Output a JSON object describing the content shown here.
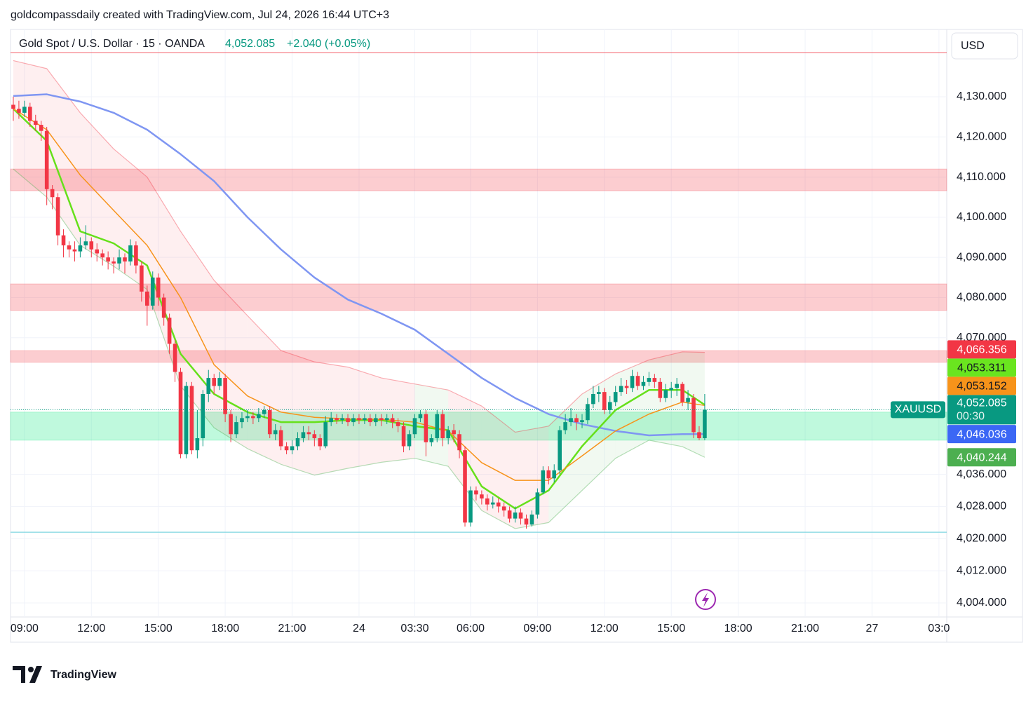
{
  "header": {
    "caption": "goldcompassdaily created with TradingView.com, Jul 24, 2026 16:44 UTC+3",
    "brand": "TradingView"
  },
  "chart_data": {
    "type": "candlestick",
    "title": "Gold Spot / U.S. Dollar · 15 · OANDA",
    "change": "+2.040 (+0.05%)",
    "currency": "USD",
    "up_color": "#089981",
    "down_color": "#f23645",
    "xlim": [
      -0.5,
      167.4
    ],
    "xticks": [
      {
        "value": 2,
        "label": "09:00"
      },
      {
        "value": 14,
        "label": "12:00"
      },
      {
        "value": 26,
        "label": "15:00"
      },
      {
        "value": 38,
        "label": "18:00"
      },
      {
        "value": 50,
        "label": "21:00"
      },
      {
        "value": 62,
        "label": "24"
      },
      {
        "value": 72,
        "label": "03:30"
      },
      {
        "value": 82,
        "label": "06:00"
      },
      {
        "value": 94,
        "label": "09:00"
      },
      {
        "value": 106,
        "label": "12:00"
      },
      {
        "value": 118,
        "label": "15:00"
      },
      {
        "value": 130,
        "label": "18:00"
      },
      {
        "value": 142,
        "label": "21:00"
      },
      {
        "value": 154,
        "label": "27"
      },
      {
        "value": 166,
        "label": "03:0"
      }
    ],
    "ylim": [
      4000.5,
      4146.75
    ],
    "yticks": [
      {
        "value": 4130,
        "label": "4,130.000"
      },
      {
        "value": 4120,
        "label": "4,120.000"
      },
      {
        "value": 4110,
        "label": "4,110.000"
      },
      {
        "value": 4100,
        "label": "4,100.000"
      },
      {
        "value": 4090,
        "label": "4,090.000"
      },
      {
        "value": 4080,
        "label": "4,080.000"
      },
      {
        "value": 4070,
        "label": "4,070.000"
      },
      {
        "value": 4036,
        "label": "4,036.000"
      },
      {
        "value": 4028,
        "label": "4,028.000"
      },
      {
        "value": 4020,
        "label": "4,020.000"
      },
      {
        "value": 4012,
        "label": "4,012.000"
      },
      {
        "value": 4004,
        "label": "4,004.000"
      }
    ],
    "grid": true,
    "open": [
      4128,
      4127,
      4126,
      4127.5,
      4124,
      4123,
      4121.5,
      4107,
      4105,
      4095.5,
      4093,
      4092,
      4091.5,
      4093,
      4094,
      4092,
      4091,
      4090,
      4089,
      4088.5,
      4090,
      4089,
      4093,
      4088,
      4081.5,
      4078,
      4085,
      4080,
      4075,
      4068.5,
      4061.5,
      4041,
      4058,
      4042,
      4045,
      4056,
      4060,
      4058,
      4060,
      4051,
      4046,
      4049,
      4050,
      4050.5,
      4050,
      4051,
      4052,
      4046,
      4047,
      4043,
      4042,
      4043,
      4045,
      4046.5,
      4046,
      4045,
      4043,
      4049,
      4050,
      4049.5,
      4050,
      4049,
      4050,
      4049.5,
      4050,
      4049,
      4050,
      4049.5,
      4050,
      4049,
      4048,
      4043,
      4046,
      4050,
      4051,
      4044,
      4045,
      4051,
      4045,
      4047,
      4046,
      4042,
      4024,
      4032,
      4031,
      4030,
      4028.5,
      4029,
      4028,
      4027,
      4025,
      4026.5,
      4025,
      4023.5,
      4026,
      4031.5,
      4037,
      4035,
      4037,
      4047,
      4049,
      4050,
      4049,
      4049.5,
      4053.5,
      4056,
      4056.5,
      4052,
      4054,
      4056.5,
      4058,
      4057.5,
      4060.5,
      4058,
      4059,
      4060,
      4059,
      4055,
      4057,
      4057.5,
      4058.5,
      4054,
      4055,
      4046.5,
      4045
    ],
    "high": [
      4130,
      4129,
      4129,
      4128.5,
      4125.5,
      4124,
      4122.5,
      4108,
      4106,
      4097,
      4094,
      4094,
      4095,
      4098,
      4095,
      4093.5,
      4092,
      4091.5,
      4090,
      4092,
      4091,
      4094.5,
      4094,
      4089,
      4083,
      4086.5,
      4086,
      4081,
      4076,
      4069.5,
      4062.5,
      4059,
      4059,
      4052,
      4057,
      4062,
      4061,
      4061.5,
      4061,
      4052,
      4050.5,
      4051.5,
      4052,
      4051.5,
      4052.5,
      4053,
      4053,
      4048.5,
      4048,
      4044,
      4044.5,
      4046.5,
      4048,
      4048,
      4047,
      4046,
      4050.5,
      4051.5,
      4051,
      4051,
      4051,
      4051,
      4051,
      4051,
      4051,
      4051,
      4051,
      4051,
      4051,
      4050,
      4049,
      4047,
      4051,
      4052,
      4052,
      4046,
      4052,
      4052,
      4048,
      4048.5,
      4047,
      4043,
      4033,
      4033,
      4032,
      4031,
      4030.5,
      4030,
      4029,
      4028,
      4028,
      4027.5,
      4026,
      4027,
      4032.5,
      4038,
      4038,
      4038.5,
      4048,
      4051,
      4052.5,
      4051,
      4051,
      4055,
      4058,
      4058,
      4057.5,
      4055.5,
      4058,
      4060,
      4059.5,
      4062,
      4061.5,
      4060.5,
      4061.5,
      4061,
      4060,
      4058.5,
      4059,
      4060,
      4059,
      4057,
      4056,
      4048,
      4056
    ],
    "low": [
      4124,
      4124.5,
      4125,
      4122.5,
      4121.5,
      4119,
      4103,
      4102,
      4093,
      4090,
      4090,
      4089,
      4090,
      4092,
      4090,
      4089,
      4088,
      4087,
      4086,
      4087,
      4086,
      4088,
      4086,
      4079,
      4073,
      4077,
      4078,
      4073,
      4066,
      4059,
      4040,
      4040,
      4041,
      4040,
      4043,
      4054,
      4056,
      4057,
      4049,
      4044,
      4045,
      4047.5,
      4049,
      4048.5,
      4049,
      4050,
      4045,
      4044.5,
      4042,
      4041,
      4041,
      4042,
      4044,
      4044.5,
      4043,
      4042,
      4042.5,
      4048,
      4048.5,
      4048.5,
      4048,
      4048,
      4048.5,
      4048.5,
      4048,
      4048,
      4048,
      4048.5,
      4047.5,
      4046.5,
      4041.5,
      4042,
      4045,
      4049,
      4040.5,
      4043,
      4044,
      4043,
      4043.5,
      4044,
      4040,
      4023,
      4023,
      4029.5,
      4028.5,
      4027,
      4027.5,
      4026.5,
      4025.5,
      4024,
      4024,
      4023.5,
      4022.5,
      4023,
      4025,
      4031,
      4033.5,
      4034,
      4036,
      4046,
      4048,
      4047,
      4047.5,
      4048.5,
      4052.5,
      4054,
      4051,
      4051,
      4053,
      4055.5,
      4056,
      4056.5,
      4057,
      4057,
      4058,
      4057.5,
      4054,
      4054,
      4055,
      4055.5,
      4053,
      4052,
      4045,
      4044.5,
      4044.5
    ],
    "close": [
      4127,
      4126,
      4127.5,
      4124,
      4123,
      4121.5,
      4107,
      4105,
      4095.5,
      4093,
      4092,
      4091.5,
      4093,
      4094,
      4092,
      4091,
      4090,
      4089,
      4088.5,
      4090,
      4089,
      4093,
      4088,
      4081.5,
      4078,
      4085,
      4080,
      4075,
      4068.5,
      4061.5,
      4041,
      4058,
      4042,
      4045,
      4056,
      4060,
      4058,
      4060,
      4051,
      4046,
      4049,
      4050,
      4050.5,
      4050,
      4051,
      4052,
      4046,
      4047,
      4043,
      4042,
      4043,
      4045,
      4046.5,
      4046,
      4045,
      4043,
      4049,
      4050,
      4049.5,
      4050,
      4049,
      4050,
      4049.5,
      4050,
      4049,
      4050,
      4049.5,
      4050,
      4049,
      4048,
      4043,
      4046,
      4050,
      4051,
      4044,
      4045,
      4051,
      4045,
      4047,
      4046,
      4042,
      4024,
      4032,
      4031,
      4030,
      4028.5,
      4029,
      4028,
      4027,
      4025,
      4026.5,
      4025,
      4023.5,
      4026,
      4031.5,
      4037,
      4035,
      4037,
      4047,
      4049,
      4050,
      4049,
      4049.5,
      4053.5,
      4056,
      4056.5,
      4052,
      4054,
      4056.5,
      4058,
      4057.5,
      4060.5,
      4058,
      4059,
      4060,
      4059,
      4055,
      4057,
      4057.5,
      4058.5,
      4054,
      4055,
      4046.5,
      4045,
      4052.085
    ],
    "indicator_x": [
      0,
      6,
      12,
      18,
      24,
      30,
      36,
      42,
      48,
      54,
      60,
      66,
      72,
      78,
      84,
      90,
      96,
      102,
      108,
      114,
      120,
      124
    ],
    "lines": [
      {
        "color": "#7f96f2",
        "width": 2.5,
        "values": [
          4130.2,
          4130.6,
          4128.8,
          4126,
          4121.8,
          4115.7,
          4109,
          4100,
          4092,
          4085,
          4079.5,
          4076,
          4072,
          4066,
          4060,
          4055,
          4051,
          4048.5,
          4046.8,
          4045.7,
          4046,
          4046.036
        ]
      },
      {
        "color": "#66e01a",
        "width": 2.5,
        "values": [
          4127,
          4119,
          4096.5,
          4093.5,
          4088,
          4066,
          4056,
          4051.5,
          4049,
          4049,
          4049.5,
          4049.5,
          4048,
          4047,
          4033,
          4027.5,
          4032,
          4043,
          4052,
          4057,
          4057,
          4053.311
        ]
      },
      {
        "color": "#f7931a",
        "width": 1.5,
        "values": [
          4127,
          4121.8,
          4110.5,
          4101.7,
          4093,
          4080,
          4063.3,
          4055.5,
          4051.5,
          4050.2,
          4049.8,
          4049.7,
          4049,
          4046.8,
          4038.9,
          4034.5,
          4034.5,
          4040.6,
          4046.8,
          4051,
          4054,
          4053.152
        ]
      }
    ],
    "band": {
      "upper": [
        4139,
        4137,
        4126,
        4117,
        4110,
        4096.5,
        4084.3,
        4075.5,
        4066.8,
        4064,
        4062.7,
        4060,
        4058.5,
        4057,
        4053,
        4046.5,
        4048,
        4056,
        4061,
        4064.5,
        4066.5,
        4066.356
      ],
      "lower": [
        4112,
        4105,
        4093,
        4087.8,
        4082,
        4058,
        4047.6,
        4042.4,
        4038.5,
        4035.8,
        4037.5,
        4039,
        4040,
        4038,
        4027,
        4022.5,
        4024,
        4032,
        4040,
        4044.5,
        4042.9,
        4040.244
      ],
      "upper_color": "#f2364566",
      "lower_color": "#4caf5066",
      "fill_down": "#f2364514",
      "fill_up": "#4caf5014"
    },
    "zones": [
      {
        "from": 4106.6,
        "to": 4112,
        "color": "#f2364540"
      },
      {
        "from": 4076.8,
        "to": 4083.4,
        "color": "#f2364540"
      },
      {
        "from": 4063.9,
        "to": 4066.8,
        "color": "#f2364540"
      },
      {
        "from": 4044.5,
        "to": 4051.5,
        "color": "#00e67640"
      }
    ],
    "hlines": [
      {
        "value": 4141,
        "color": "#f23645aa"
      },
      {
        "value": 4021.6,
        "color": "#7ed6e0"
      }
    ],
    "last_price": {
      "symbol": "XAUUSD",
      "label": "4,052.085",
      "countdown": "00:30",
      "color": "#089981"
    },
    "price_labels": [
      {
        "value": 4066.356,
        "label": "4,066.356",
        "color": "#f23645",
        "text_color": "#ffffff"
      },
      {
        "value": 4053.311,
        "label": "4,053.311",
        "color": "#6ae51f",
        "text_color": "#131722"
      },
      {
        "value": 4053.152,
        "label": "4,053.152",
        "color": "#f7931a",
        "text_color": "#131722"
      },
      {
        "value": 4046.036,
        "label": "4,046.036",
        "color": "#3b67f5",
        "text_color": "#ffffff"
      },
      {
        "value": 4040.244,
        "label": "4,040.244",
        "color": "#4caf50",
        "text_color": "#ffffff"
      }
    ]
  }
}
